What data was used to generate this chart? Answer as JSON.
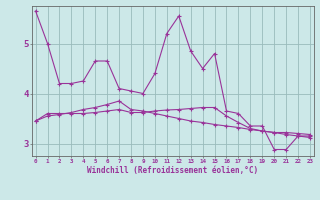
{
  "xlabel": "Windchill (Refroidissement éolien,°C)",
  "bg_color": "#cce8e8",
  "line_color": "#993399",
  "grid_color": "#99bbbb",
  "spine_color": "#666666",
  "x": [
    0,
    1,
    2,
    3,
    4,
    5,
    6,
    7,
    8,
    9,
    10,
    11,
    12,
    13,
    14,
    15,
    16,
    17,
    18,
    19,
    20,
    21,
    22,
    23
  ],
  "line1": [
    5.65,
    5.0,
    4.2,
    4.2,
    4.25,
    4.65,
    4.65,
    4.1,
    4.05,
    4.0,
    4.4,
    5.2,
    5.55,
    4.85,
    4.5,
    4.8,
    3.65,
    3.6,
    3.35,
    3.35,
    2.88,
    2.88,
    3.15,
    3.15
  ],
  "line2": [
    3.45,
    3.6,
    3.6,
    3.6,
    3.6,
    3.62,
    3.65,
    3.68,
    3.62,
    3.62,
    3.65,
    3.67,
    3.68,
    3.7,
    3.72,
    3.72,
    3.55,
    3.42,
    3.3,
    3.25,
    3.22,
    3.22,
    3.2,
    3.18
  ],
  "line3": [
    3.45,
    3.55,
    3.58,
    3.62,
    3.68,
    3.72,
    3.78,
    3.85,
    3.68,
    3.65,
    3.6,
    3.55,
    3.5,
    3.45,
    3.42,
    3.38,
    3.35,
    3.32,
    3.28,
    3.25,
    3.22,
    3.18,
    3.15,
    3.12
  ],
  "ylim": [
    2.75,
    5.75
  ],
  "yticks": [
    3,
    4,
    5
  ],
  "xticks": [
    0,
    1,
    2,
    3,
    4,
    5,
    6,
    7,
    8,
    9,
    10,
    11,
    12,
    13,
    14,
    15,
    16,
    17,
    18,
    19,
    20,
    21,
    22,
    23
  ],
  "xlim": [
    -0.3,
    23.3
  ]
}
